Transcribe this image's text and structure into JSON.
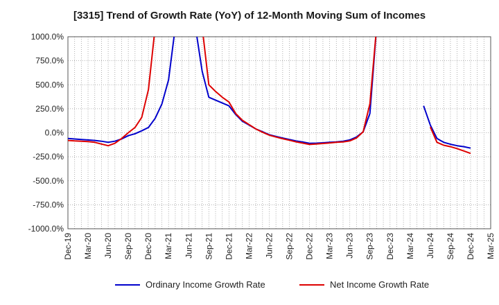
{
  "chart_data": {
    "type": "line",
    "title": "[3315]  Trend of Growth Rate (YoY) of 12-Month Moving Sum of Incomes",
    "ylim": [
      -1000,
      1000
    ],
    "y_ticks": [
      1000,
      750,
      500,
      250,
      0,
      -250,
      -500,
      -750,
      -1000
    ],
    "y_tick_labels": [
      "1000.0%",
      "750.0%",
      "500.0%",
      "250.0%",
      "0.0%",
      "-250.0%",
      "-500.0%",
      "-750.0%",
      "-1000.0%"
    ],
    "x_start": "2019-12",
    "x_ticks": [
      "Dec-19",
      "Mar-20",
      "Jun-20",
      "Sep-20",
      "Dec-20",
      "Mar-21",
      "Jun-21",
      "Sep-21",
      "Dec-21",
      "Mar-22",
      "Jun-22",
      "Sep-22",
      "Dec-22",
      "Mar-23",
      "Jun-23",
      "Sep-23",
      "Dec-23",
      "Mar-24",
      "Jun-24",
      "Sep-24",
      "Dec-24",
      "Mar-25"
    ],
    "grid": true,
    "legend_position": "bottom",
    "series": [
      {
        "name": "Ordinary Income Growth Rate",
        "color": "#0000cc",
        "points": [
          [
            "Dec-19",
            -60
          ],
          [
            "Jan-20",
            -65
          ],
          [
            "Feb-20",
            -70
          ],
          [
            "Mar-20",
            -75
          ],
          [
            "Apr-20",
            -80
          ],
          [
            "May-20",
            -88
          ],
          [
            "Jun-20",
            -100
          ],
          [
            "Jul-20",
            -88
          ],
          [
            "Aug-20",
            -65
          ],
          [
            "Sep-20",
            -30
          ],
          [
            "Oct-20",
            -10
          ],
          [
            "Nov-20",
            20
          ],
          [
            "Dec-20",
            55
          ],
          [
            "Jan-21",
            150
          ],
          [
            "Feb-21",
            300
          ],
          [
            "Mar-21",
            550
          ],
          [
            "Apr-21",
            1100
          ],
          null,
          [
            "Jul-21",
            1100
          ],
          [
            "Aug-21",
            640
          ],
          [
            "Sep-21",
            370
          ],
          [
            "Oct-21",
            340
          ],
          [
            "Nov-21",
            310
          ],
          [
            "Dec-21",
            280
          ],
          [
            "Jan-22",
            190
          ],
          [
            "Feb-22",
            120
          ],
          [
            "Mar-22",
            80
          ],
          [
            "Apr-22",
            40
          ],
          [
            "May-22",
            10
          ],
          [
            "Jun-22",
            -20
          ],
          [
            "Jul-22",
            -38
          ],
          [
            "Aug-22",
            -55
          ],
          [
            "Sep-22",
            -70
          ],
          [
            "Oct-22",
            -85
          ],
          [
            "Nov-22",
            -97
          ],
          [
            "Dec-22",
            -110
          ],
          [
            "Jan-23",
            -108
          ],
          [
            "Feb-23",
            -105
          ],
          [
            "Mar-23",
            -100
          ],
          [
            "Apr-23",
            -95
          ],
          [
            "May-23",
            -88
          ],
          [
            "Jun-23",
            -75
          ],
          [
            "Jul-23",
            -45
          ],
          [
            "Aug-23",
            10
          ],
          [
            "Sep-23",
            200
          ],
          [
            "Oct-23",
            1100
          ],
          null,
          [
            "May-24",
            280
          ],
          [
            "Jun-24",
            80
          ],
          [
            "Jul-24",
            -60
          ],
          [
            "Aug-24",
            -100
          ],
          [
            "Sep-24",
            -120
          ],
          [
            "Oct-24",
            -135
          ],
          [
            "Nov-24",
            -145
          ],
          [
            "Dec-24",
            -160
          ]
        ]
      },
      {
        "name": "Net Income Growth Rate",
        "color": "#dd0000",
        "points": [
          [
            "Dec-19",
            -80
          ],
          [
            "Jan-20",
            -85
          ],
          [
            "Feb-20",
            -88
          ],
          [
            "Mar-20",
            -92
          ],
          [
            "Apr-20",
            -100
          ],
          [
            "May-20",
            -118
          ],
          [
            "Jun-20",
            -135
          ],
          [
            "Jul-20",
            -110
          ],
          [
            "Aug-20",
            -60
          ],
          [
            "Sep-20",
            0
          ],
          [
            "Oct-20",
            55
          ],
          [
            "Nov-20",
            160
          ],
          [
            "Dec-20",
            450
          ],
          [
            "Jan-21",
            1100
          ],
          null,
          [
            "Aug-21",
            1100
          ],
          [
            "Sep-21",
            500
          ],
          [
            "Oct-21",
            430
          ],
          [
            "Nov-21",
            370
          ],
          [
            "Dec-21",
            320
          ],
          [
            "Jan-22",
            200
          ],
          [
            "Feb-22",
            130
          ],
          [
            "Mar-22",
            85
          ],
          [
            "Apr-22",
            40
          ],
          [
            "May-22",
            5
          ],
          [
            "Jun-22",
            -25
          ],
          [
            "Jul-22",
            -45
          ],
          [
            "Aug-22",
            -62
          ],
          [
            "Sep-22",
            -78
          ],
          [
            "Oct-22",
            -95
          ],
          [
            "Nov-22",
            -108
          ],
          [
            "Dec-22",
            -122
          ],
          [
            "Jan-23",
            -118
          ],
          [
            "Feb-23",
            -112
          ],
          [
            "Mar-23",
            -106
          ],
          [
            "Apr-23",
            -100
          ],
          [
            "May-23",
            -95
          ],
          [
            "Jun-23",
            -85
          ],
          [
            "Jul-23",
            -55
          ],
          [
            "Aug-23",
            10
          ],
          [
            "Sep-23",
            300
          ],
          [
            "Oct-23",
            1100
          ],
          null,
          [
            "Jun-24",
            60
          ],
          [
            "Jul-24",
            -100
          ],
          [
            "Aug-24",
            -130
          ],
          [
            "Sep-24",
            -145
          ],
          [
            "Oct-24",
            -165
          ],
          [
            "Nov-24",
            -190
          ],
          [
            "Dec-24",
            -215
          ]
        ]
      }
    ]
  }
}
